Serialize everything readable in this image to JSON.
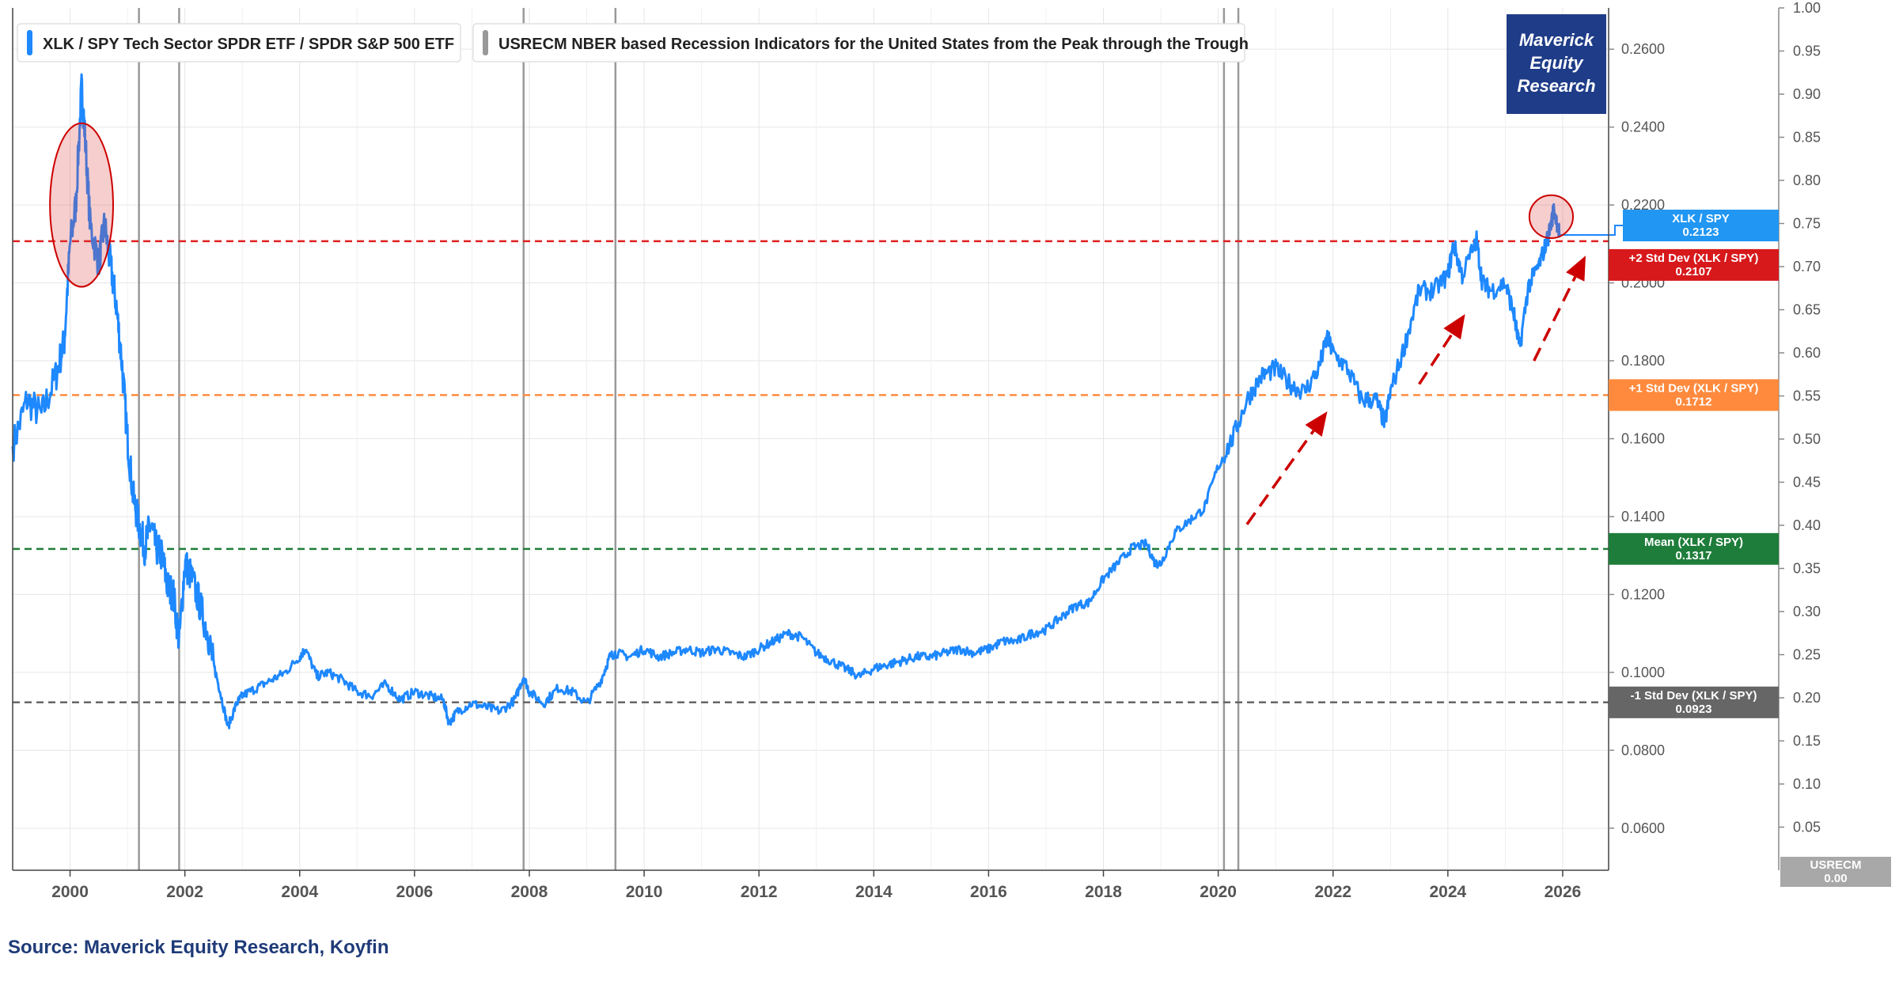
{
  "chart_data": {
    "type": "line",
    "title": "",
    "legend": [
      {
        "ticker": "XLK / SPY",
        "description": "Tech Sector SPDR ETF / SPDR S&P 500 ETF",
        "color": "#1e88ff"
      },
      {
        "ticker": "USRECM",
        "description": "NBER based Recession Indicators for the United States from the Peak through the Trough",
        "color": "#999999"
      }
    ],
    "legend_position": "top-left",
    "brand": [
      "Maverick",
      "Equity",
      "Research"
    ],
    "brand_color": "#1f3c88",
    "source": "Source: Maverick Equity Research, Koyfin",
    "x_range": [
      1999.0,
      2026.8
    ],
    "x_ticks": [
      "2000",
      "2002",
      "2004",
      "2006",
      "2008",
      "2010",
      "2012",
      "2014",
      "2016",
      "2018",
      "2020",
      "2022",
      "2024",
      "2026"
    ],
    "y_axis_left": {
      "range": [
        0.0492,
        0.2706
      ],
      "ticks": [
        "0.0600",
        "0.0800",
        "0.1000",
        "0.1200",
        "0.1400",
        "0.1600",
        "0.1800",
        "0.2000",
        "0.2200",
        "0.2400",
        "0.2600"
      ]
    },
    "y_axis_right": {
      "range": [
        0.0,
        1.0
      ],
      "ticks": [
        "0.05",
        "0.10",
        "0.15",
        "0.20",
        "0.25",
        "0.30",
        "0.35",
        "0.40",
        "0.45",
        "0.50",
        "0.55",
        "0.60",
        "0.65",
        "0.70",
        "0.75",
        "0.80",
        "0.85",
        "0.90",
        "0.95",
        "1.00"
      ]
    },
    "grid": true,
    "series": [
      {
        "name": "XLK / SPY",
        "color": "#1e88ff",
        "points": [
          [
            1999.0,
            0.158
          ],
          [
            1999.25,
            0.17
          ],
          [
            1999.5,
            0.166
          ],
          [
            1999.75,
            0.176
          ],
          [
            1999.9,
            0.185
          ],
          [
            2000.0,
            0.21
          ],
          [
            2000.1,
            0.22
          ],
          [
            2000.2,
            0.25
          ],
          [
            2000.25,
            0.24
          ],
          [
            2000.35,
            0.215
          ],
          [
            2000.5,
            0.205
          ],
          [
            2000.6,
            0.215
          ],
          [
            2000.7,
            0.205
          ],
          [
            2000.8,
            0.195
          ],
          [
            2000.9,
            0.18
          ],
          [
            2001.0,
            0.16
          ],
          [
            2001.1,
            0.145
          ],
          [
            2001.2,
            0.138
          ],
          [
            2001.3,
            0.132
          ],
          [
            2001.4,
            0.138
          ],
          [
            2001.5,
            0.132
          ],
          [
            2001.6,
            0.13
          ],
          [
            2001.7,
            0.122
          ],
          [
            2001.8,
            0.12
          ],
          [
            2001.9,
            0.108
          ],
          [
            2002.0,
            0.128
          ],
          [
            2002.1,
            0.125
          ],
          [
            2002.25,
            0.118
          ],
          [
            2002.4,
            0.11
          ],
          [
            2002.5,
            0.102
          ],
          [
            2002.6,
            0.096
          ],
          [
            2002.75,
            0.086
          ],
          [
            2002.9,
            0.092
          ],
          [
            2003.0,
            0.094
          ],
          [
            2003.25,
            0.096
          ],
          [
            2003.5,
            0.098
          ],
          [
            2003.75,
            0.1
          ],
          [
            2004.0,
            0.104
          ],
          [
            2004.1,
            0.106
          ],
          [
            2004.3,
            0.099
          ],
          [
            2004.5,
            0.1
          ],
          [
            2004.75,
            0.098
          ],
          [
            2005.0,
            0.095
          ],
          [
            2005.25,
            0.094
          ],
          [
            2005.5,
            0.097
          ],
          [
            2005.75,
            0.093
          ],
          [
            2006.0,
            0.095
          ],
          [
            2006.25,
            0.094
          ],
          [
            2006.5,
            0.093
          ],
          [
            2006.6,
            0.087
          ],
          [
            2006.75,
            0.09
          ],
          [
            2007.0,
            0.092
          ],
          [
            2007.25,
            0.091
          ],
          [
            2007.5,
            0.09
          ],
          [
            2007.75,
            0.093
          ],
          [
            2007.9,
            0.099
          ],
          [
            2008.0,
            0.095
          ],
          [
            2008.25,
            0.092
          ],
          [
            2008.5,
            0.096
          ],
          [
            2008.75,
            0.095
          ],
          [
            2009.0,
            0.092
          ],
          [
            2009.25,
            0.098
          ],
          [
            2009.4,
            0.104
          ],
          [
            2009.5,
            0.105
          ],
          [
            2009.75,
            0.104
          ],
          [
            2010.0,
            0.106
          ],
          [
            2010.25,
            0.104
          ],
          [
            2010.5,
            0.105
          ],
          [
            2010.75,
            0.106
          ],
          [
            2011.0,
            0.105
          ],
          [
            2011.25,
            0.106
          ],
          [
            2011.5,
            0.105
          ],
          [
            2011.75,
            0.104
          ],
          [
            2012.0,
            0.106
          ],
          [
            2012.25,
            0.108
          ],
          [
            2012.5,
            0.11
          ],
          [
            2012.75,
            0.109
          ],
          [
            2013.0,
            0.105
          ],
          [
            2013.25,
            0.103
          ],
          [
            2013.5,
            0.101
          ],
          [
            2013.75,
            0.099
          ],
          [
            2014.0,
            0.101
          ],
          [
            2014.25,
            0.102
          ],
          [
            2014.5,
            0.103
          ],
          [
            2014.75,
            0.104
          ],
          [
            2015.0,
            0.104
          ],
          [
            2015.25,
            0.105
          ],
          [
            2015.5,
            0.106
          ],
          [
            2015.75,
            0.105
          ],
          [
            2016.0,
            0.106
          ],
          [
            2016.25,
            0.108
          ],
          [
            2016.5,
            0.108
          ],
          [
            2016.75,
            0.11
          ],
          [
            2017.0,
            0.111
          ],
          [
            2017.25,
            0.114
          ],
          [
            2017.5,
            0.117
          ],
          [
            2017.75,
            0.118
          ],
          [
            2018.0,
            0.124
          ],
          [
            2018.25,
            0.128
          ],
          [
            2018.5,
            0.132
          ],
          [
            2018.75,
            0.133
          ],
          [
            2018.9,
            0.128
          ],
          [
            2019.0,
            0.128
          ],
          [
            2019.25,
            0.136
          ],
          [
            2019.5,
            0.139
          ],
          [
            2019.75,
            0.142
          ],
          [
            2020.0,
            0.153
          ],
          [
            2020.25,
            0.16
          ],
          [
            2020.5,
            0.17
          ],
          [
            2020.75,
            0.176
          ],
          [
            2021.0,
            0.178
          ],
          [
            2021.25,
            0.174
          ],
          [
            2021.5,
            0.172
          ],
          [
            2021.75,
            0.178
          ],
          [
            2021.9,
            0.186
          ],
          [
            2022.0,
            0.182
          ],
          [
            2022.25,
            0.178
          ],
          [
            2022.5,
            0.17
          ],
          [
            2022.75,
            0.17
          ],
          [
            2022.9,
            0.164
          ],
          [
            2023.0,
            0.172
          ],
          [
            2023.25,
            0.184
          ],
          [
            2023.5,
            0.198
          ],
          [
            2023.75,
            0.198
          ],
          [
            2024.0,
            0.202
          ],
          [
            2024.1,
            0.21
          ],
          [
            2024.25,
            0.202
          ],
          [
            2024.5,
            0.211
          ],
          [
            2024.6,
            0.2
          ],
          [
            2024.75,
            0.198
          ],
          [
            2025.0,
            0.2
          ],
          [
            2025.15,
            0.192
          ],
          [
            2025.25,
            0.183
          ],
          [
            2025.4,
            0.199
          ],
          [
            2025.6,
            0.205
          ],
          [
            2025.75,
            0.212
          ],
          [
            2025.85,
            0.219
          ],
          [
            2025.95,
            0.2123
          ]
        ]
      },
      {
        "name": "USRECM",
        "color": "#999999",
        "recessions": [
          [
            2001.2,
            2001.9
          ],
          [
            2007.9,
            2009.5
          ],
          [
            2020.1,
            2020.35
          ]
        ]
      }
    ],
    "reference_lines": [
      {
        "label": "+2 Std Dev (XLK / SPY)",
        "value": 0.2107,
        "color": "#e02020"
      },
      {
        "label": "+1 Std Dev (XLK / SPY)",
        "value": 0.1712,
        "color": "#ff8c42"
      },
      {
        "label": "Mean (XLK / SPY)",
        "value": 0.1317,
        "color": "#1e7d38"
      },
      {
        "label": "-1 Std Dev (XLK / SPY)",
        "value": 0.0923,
        "color": "#666666"
      }
    ],
    "last_value_tags": [
      {
        "label": "XLK / SPY",
        "value": "0.2123",
        "color": "#2196f3"
      },
      {
        "label": "+2 Std Dev (XLK / SPY)",
        "value": "0.2107",
        "color": "#d7191c"
      },
      {
        "label": "+1 Std Dev (XLK / SPY)",
        "value": "0.1712",
        "color": "#ff8a3d"
      },
      {
        "label": "Mean (XLK / SPY)",
        "value": "0.1317",
        "color": "#1e7d3a"
      },
      {
        "label": "-1 Std Dev (XLK / SPY)",
        "value": "0.0923",
        "color": "#666666"
      },
      {
        "label": "USRECM",
        "value": "0.00",
        "color": "#a8a8a8"
      }
    ],
    "annotations": [
      {
        "type": "ellipse",
        "center": [
          2000.2,
          0.22
        ],
        "radius_years": 0.55,
        "radius_value": 0.021,
        "color": "#cc0000"
      },
      {
        "type": "ellipse",
        "center": [
          2025.8,
          0.217
        ],
        "radius_years": 0.38,
        "radius_value": 0.0055,
        "color": "#cc0000"
      },
      {
        "type": "arrow",
        "from": [
          2020.5,
          0.138
        ],
        "to": [
          2021.9,
          0.167
        ],
        "color": "#cc0000"
      },
      {
        "type": "arrow",
        "from": [
          2023.5,
          0.174
        ],
        "to": [
          2024.3,
          0.192
        ],
        "color": "#cc0000"
      },
      {
        "type": "arrow",
        "from": [
          2025.5,
          0.18
        ],
        "to": [
          2026.4,
          0.207
        ],
        "color": "#cc0000"
      }
    ]
  }
}
